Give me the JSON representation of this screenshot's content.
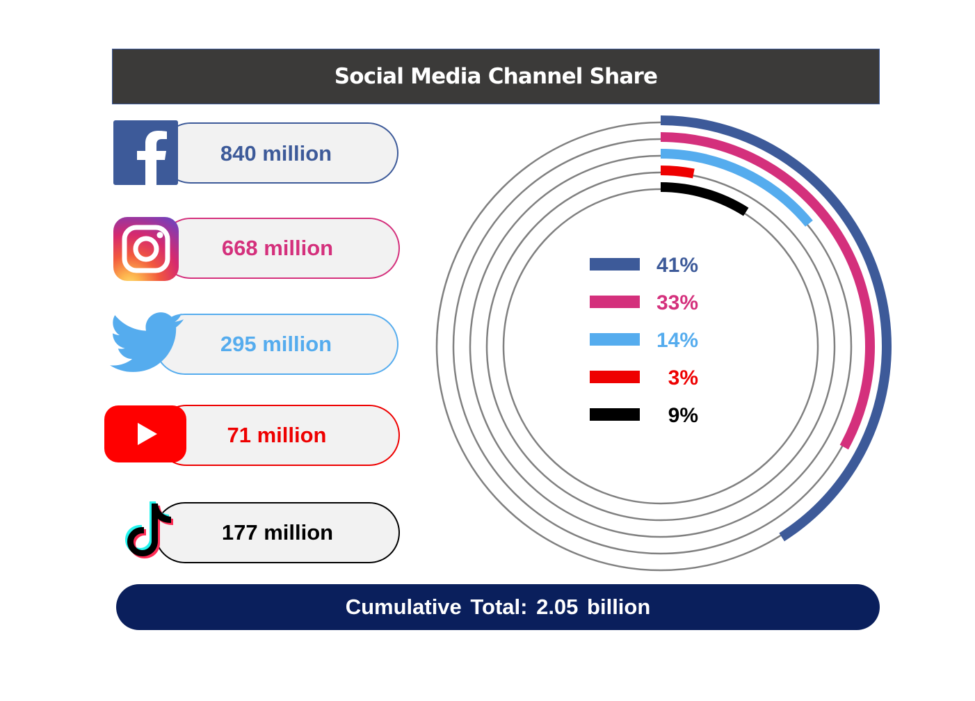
{
  "title": "Social Media Channel Share",
  "footer": {
    "label": "Cumulative Total: 2.05 billion"
  },
  "channels": [
    {
      "icon": "facebook-icon",
      "label": "840 million",
      "color": "#3d5a99"
    },
    {
      "icon": "instagram-icon",
      "label": "668 million",
      "color": "#d4307c"
    },
    {
      "icon": "twitter-icon",
      "label": "295 million",
      "color": "#55acee"
    },
    {
      "icon": "youtube-icon",
      "label": "71 million",
      "color": "#ee0000"
    },
    {
      "icon": "tiktok-icon",
      "label": "177 million",
      "color": "#000000"
    }
  ],
  "chart_data": {
    "type": "radial-bar",
    "categories": [
      "840 million",
      "668 million",
      "295 million",
      "71 million",
      "177 million"
    ],
    "values": [
      41,
      33,
      14,
      3,
      9
    ],
    "value_labels": [
      "41%",
      "33%",
      "14%",
      "3%",
      "9%"
    ],
    "colors": [
      "#3d5a99",
      "#d4307c",
      "#55acee",
      "#ee0000",
      "#000000"
    ],
    "max": 100,
    "track_color": "#808080"
  }
}
